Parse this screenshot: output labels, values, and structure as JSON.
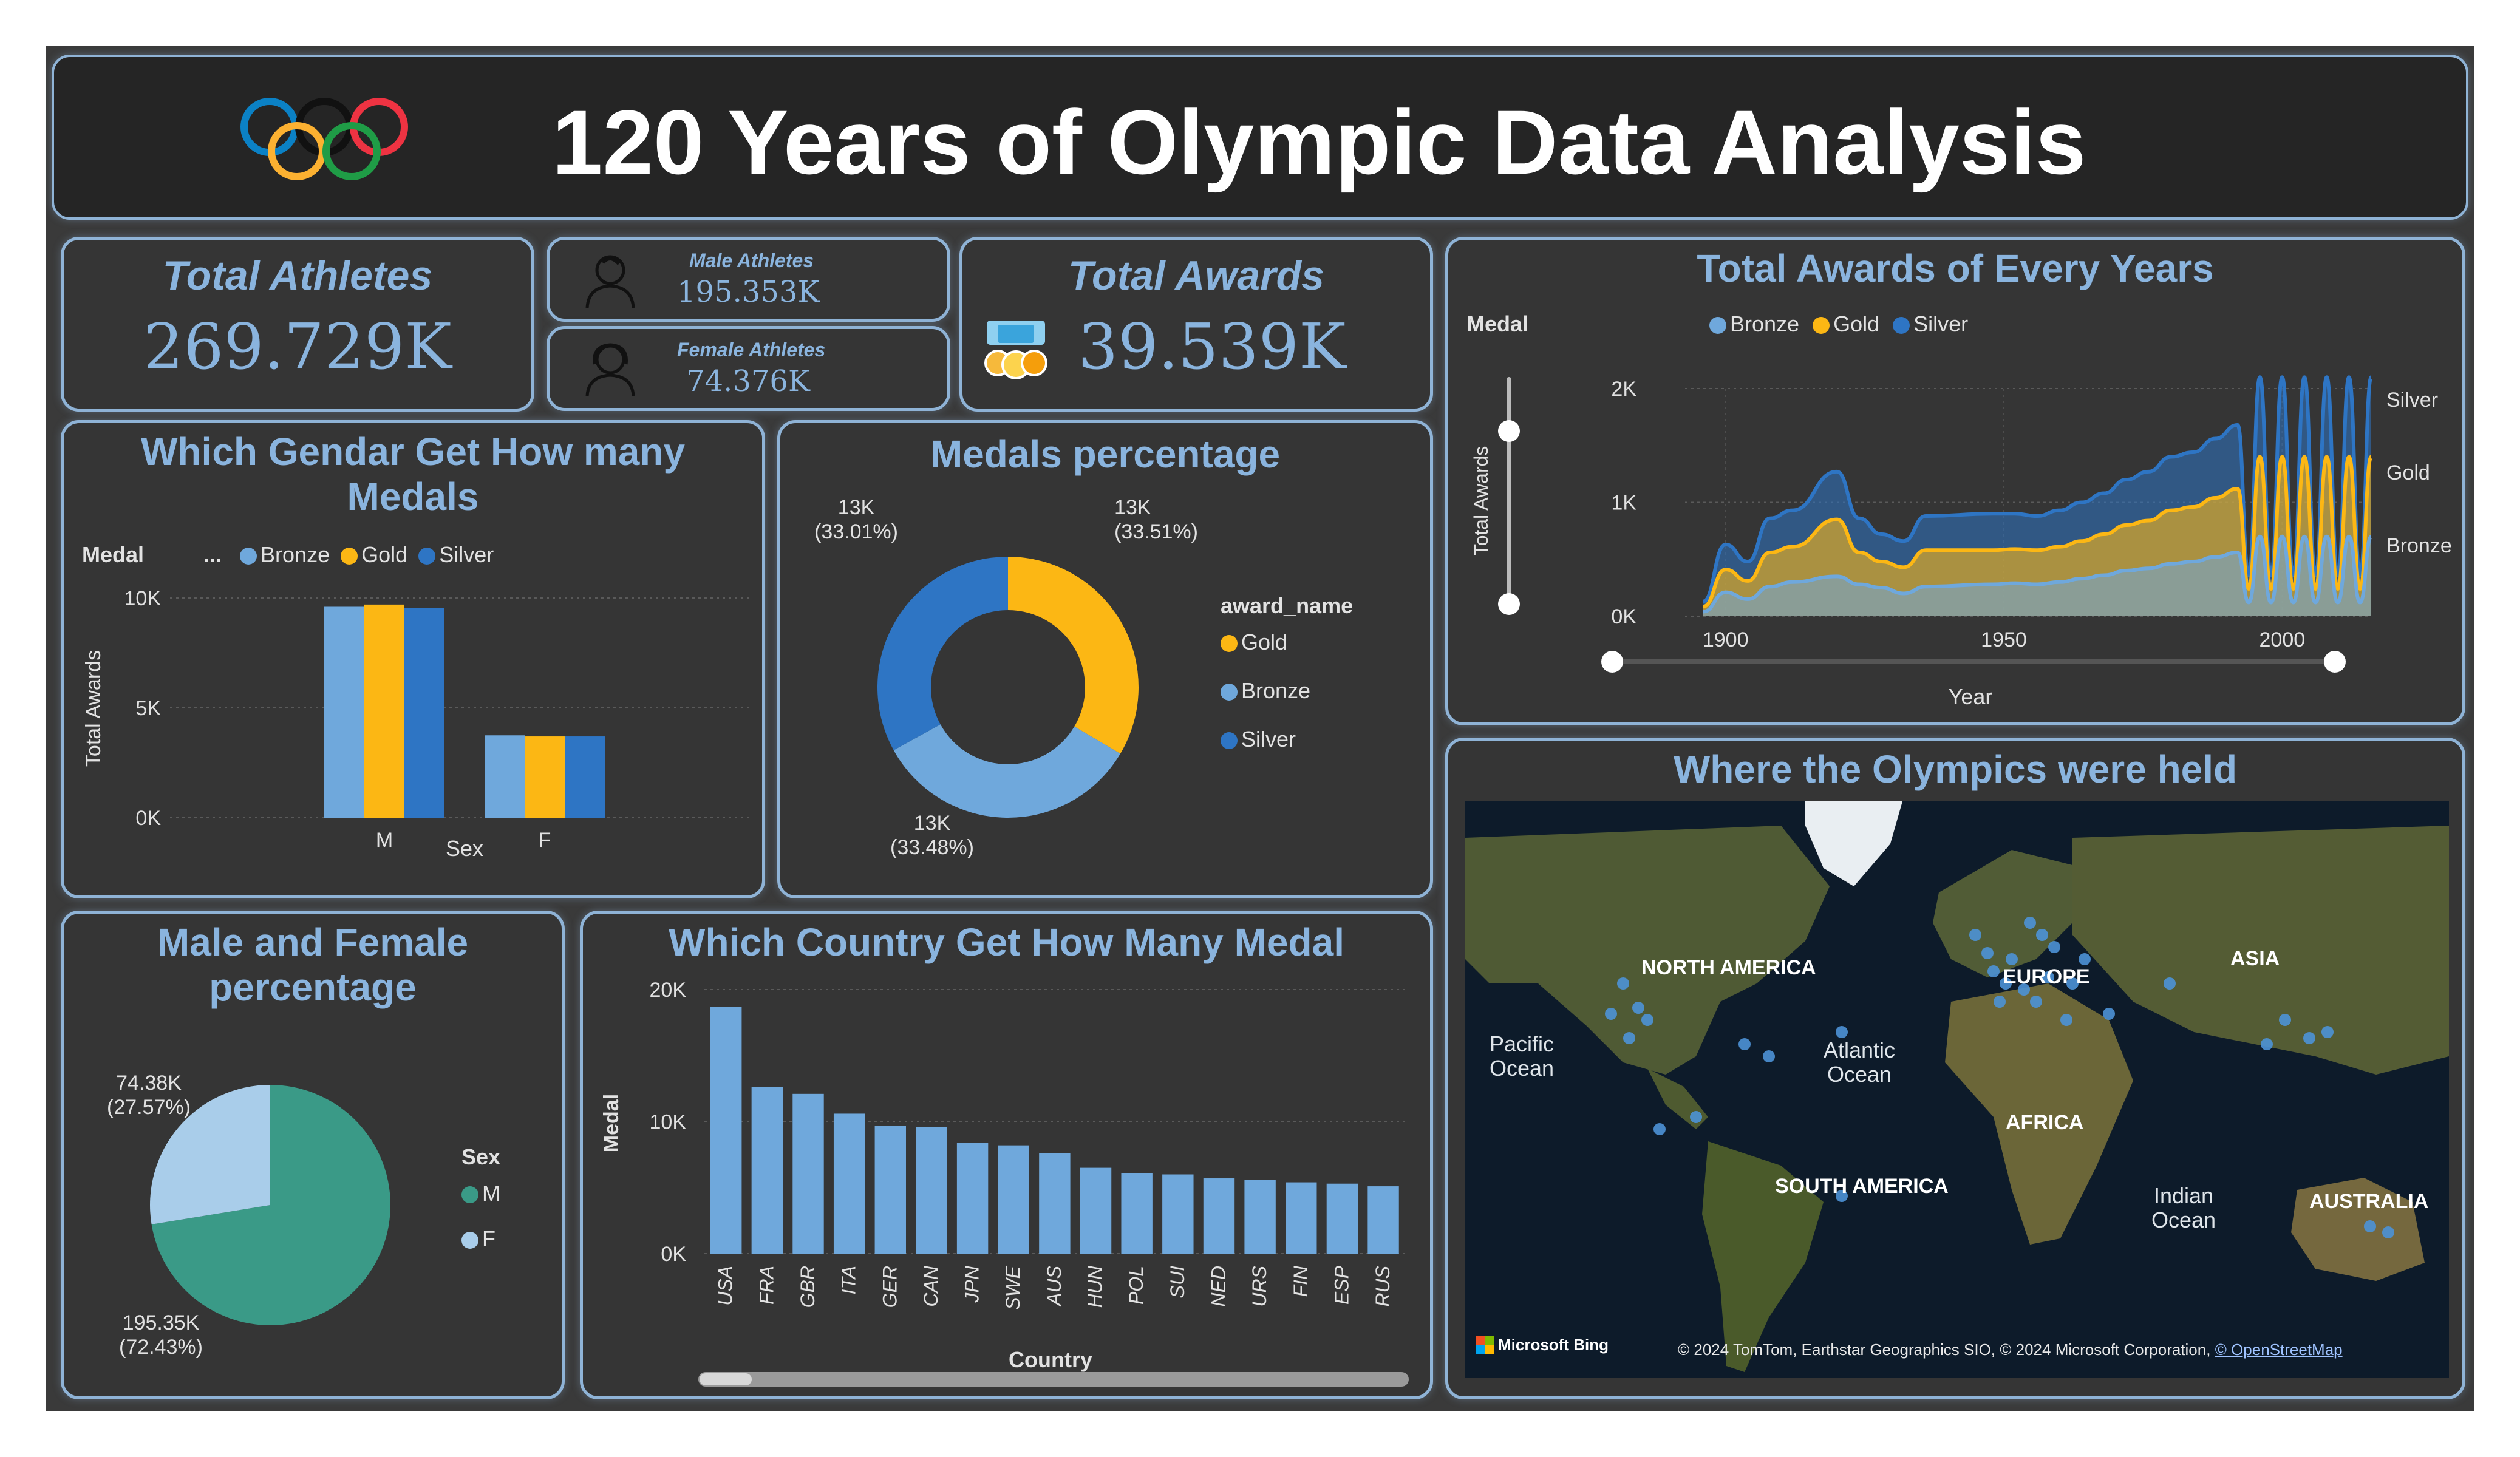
{
  "header": {
    "title": "120 Years of Olympic Data Analysis",
    "logo": "olympic-rings-icon"
  },
  "colors": {
    "bronze": "#6fa8dc",
    "gold": "#fcb714",
    "silver": "#2e75c4",
    "male": "#3a9a87",
    "female": "#a9cdea",
    "accent": "#8ab4de"
  },
  "kpis": {
    "total_athletes": {
      "label": "Total Athletes",
      "value": "269.729K"
    },
    "male_athletes": {
      "label": "Male Athletes",
      "value": "195.353K",
      "icon": "male-person-icon"
    },
    "female_athletes": {
      "label": "Female Athletes",
      "value": "74.376K",
      "icon": "female-person-icon"
    },
    "total_awards": {
      "label": "Total Awards",
      "value": "39.539K",
      "icon": "medals-icon"
    }
  },
  "gender_medals": {
    "title": "Which Gendar Get How many Medals",
    "legend_label": "Medal",
    "legend_more": "...",
    "legend": [
      "Bronze",
      "Gold",
      "Silver"
    ],
    "chart_data": {
      "type": "bar",
      "categories": [
        "M",
        "F"
      ],
      "series": [
        {
          "name": "Bronze",
          "values": [
            9600,
            3750
          ]
        },
        {
          "name": "Gold",
          "values": [
            9700,
            3700
          ]
        },
        {
          "name": "Silver",
          "values": [
            9550,
            3700
          ]
        }
      ],
      "xlabel": "Sex",
      "ylabel": "Total Awards",
      "ylim": [
        0,
        10000
      ],
      "yticks": [
        "10K",
        "5K",
        "0K"
      ],
      "grid": true
    }
  },
  "medals_pct": {
    "title": "Medals percentage",
    "legend_title": "award_name",
    "legend": [
      "Gold",
      "Bronze",
      "Silver"
    ],
    "chart_data": {
      "type": "pie",
      "labels": [
        "Gold",
        "Bronze",
        "Silver"
      ],
      "values": [
        33.51,
        33.48,
        33.01
      ],
      "label_values": [
        "13K",
        "13K",
        "13K"
      ],
      "label_pct": [
        "(33.51%)",
        "(33.48%)",
        "(33.01%)"
      ],
      "donut": true
    }
  },
  "awards_years": {
    "title": "Total Awards of Every Years",
    "legend_label": "Medal",
    "legend": [
      "Bronze",
      "Gold",
      "Silver"
    ],
    "right_labels": [
      "Silver",
      "Gold",
      "Bronze"
    ],
    "chart_data": {
      "type": "area",
      "x": [
        1896,
        1900,
        1904,
        1908,
        1912,
        1920,
        1924,
        1928,
        1932,
        1936,
        1948,
        1952,
        1956,
        1960,
        1964,
        1968,
        1972,
        1976,
        1980,
        1984,
        1988,
        1992
      ],
      "series": [
        {
          "name": "Bronze",
          "values": [
            40,
            210,
            150,
            260,
            300,
            350,
            280,
            250,
            200,
            260,
            280,
            290,
            280,
            300,
            330,
            360,
            400,
            420,
            460,
            480,
            520,
            560
          ]
        },
        {
          "name": "Gold",
          "values": [
            45,
            200,
            160,
            300,
            310,
            500,
            280,
            230,
            230,
            320,
            300,
            300,
            300,
            310,
            330,
            360,
            400,
            420,
            470,
            480,
            520,
            560
          ]
        },
        {
          "name": "Silver",
          "values": [
            45,
            220,
            170,
            300,
            320,
            420,
            300,
            240,
            230,
            300,
            320,
            310,
            300,
            320,
            340,
            360,
            400,
            430,
            470,
            480,
            520,
            560
          ]
        }
      ],
      "oscillating_after": 1992,
      "xlabel": "Year",
      "ylabel": "Total Awards",
      "xticks": [
        "1900",
        "1950",
        "2000"
      ],
      "yticks": [
        "2K",
        "1K",
        "0K"
      ],
      "ylim": [
        0,
        2000
      ],
      "stacked": true
    }
  },
  "gender_pct": {
    "title": "Male and Female percentage",
    "legend_title": "Sex",
    "legend": [
      "M",
      "F"
    ],
    "chart_data": {
      "type": "pie",
      "labels": [
        "M",
        "F"
      ],
      "values": [
        72.43,
        27.57
      ],
      "label_values": [
        "195.35K",
        "74.38K"
      ],
      "label_pct": [
        "(72.43%)",
        "(27.57%)"
      ]
    }
  },
  "country_medals": {
    "title": "Which Country Get How Many Medal",
    "chart_data": {
      "type": "bar",
      "categories": [
        "USA",
        "FRA",
        "GBR",
        "ITA",
        "GER",
        "CAN",
        "JPN",
        "SWE",
        "AUS",
        "HUN",
        "POL",
        "SUI",
        "NED",
        "URS",
        "FIN",
        "ESP",
        "RUS"
      ],
      "values": [
        18700,
        12600,
        12100,
        10600,
        9700,
        9600,
        8400,
        8200,
        7600,
        6500,
        6100,
        6000,
        5700,
        5600,
        5400,
        5300,
        5100
      ],
      "xlabel": "Country",
      "ylabel": "Medal",
      "ylim": [
        0,
        20000
      ],
      "yticks": [
        "20K",
        "10K",
        "0K"
      ]
    }
  },
  "map": {
    "title": "Where the Olympics were held",
    "labels": {
      "north_america": "NORTH AMERICA",
      "europe": "EUROPE",
      "asia": "ASIA",
      "pacific": "Pacific\nOcean",
      "atlantic": "Atlantic\nOcean",
      "africa": "AFRICA",
      "south_america": "SOUTH AMERICA",
      "indian": "Indian\nOcean",
      "australia": "AUSTRALIA"
    },
    "brand": "Microsoft Bing",
    "copyright": "© 2024 TomTom, Earthstar Geographics SIO, © 2024 Microsoft Corporation,",
    "osm_link": "© OpenStreetMap"
  }
}
